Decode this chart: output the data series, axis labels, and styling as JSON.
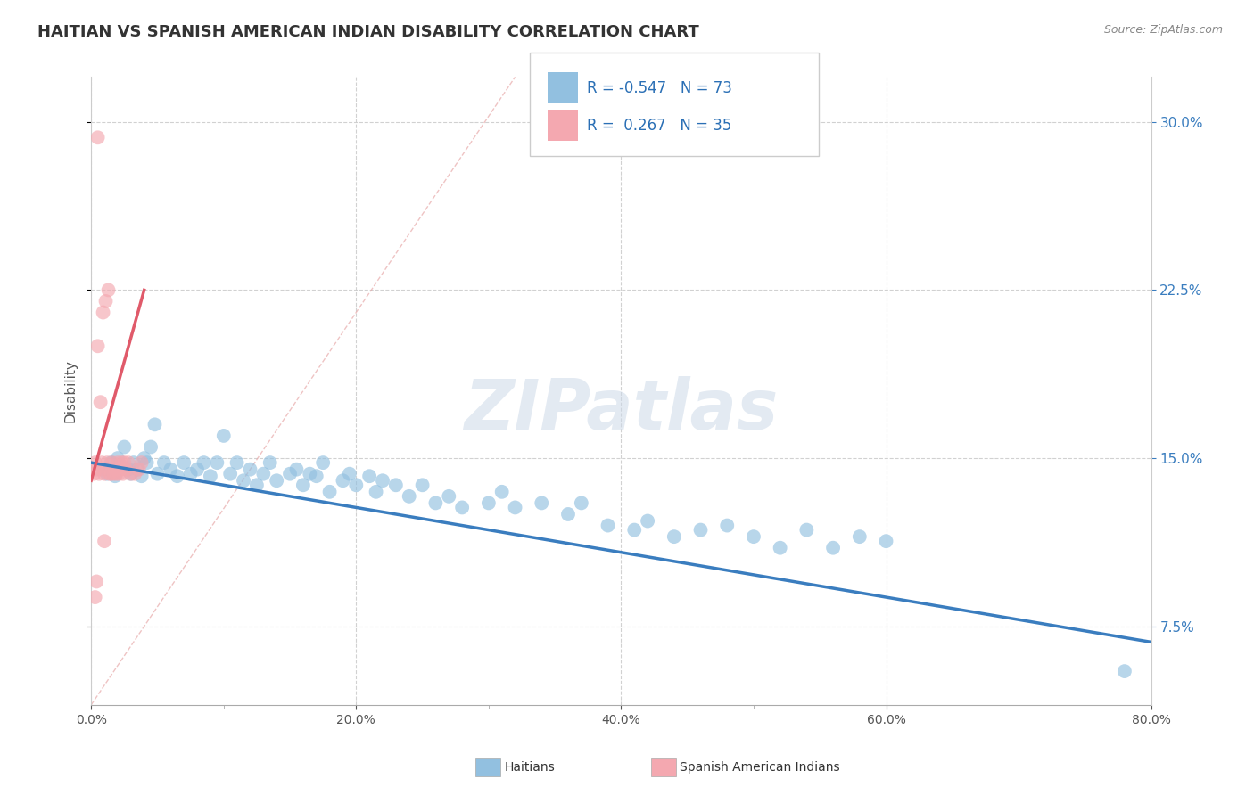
{
  "title": "HAITIAN VS SPANISH AMERICAN INDIAN DISABILITY CORRELATION CHART",
  "source_text": "Source: ZipAtlas.com",
  "ylabel_label": "Disability",
  "legend_label1": "Haitians",
  "legend_label2": "Spanish American Indians",
  "R1": "-0.547",
  "N1": "73",
  "R2": "0.267",
  "N2": "35",
  "blue_color": "#92c0e0",
  "pink_color": "#f4a8b0",
  "blue_line_color": "#3a7dbf",
  "pink_line_color": "#e05a6a",
  "diag_color": "#ddaaaa",
  "watermark_text": "ZIPatlas",
  "xmin": 0.0,
  "xmax": 0.8,
  "ymin": 0.04,
  "ymax": 0.32,
  "blue_x": [
    0.01,
    0.012,
    0.015,
    0.018,
    0.02,
    0.022,
    0.025,
    0.028,
    0.03,
    0.032,
    0.035,
    0.038,
    0.04,
    0.042,
    0.045,
    0.048,
    0.05,
    0.055,
    0.06,
    0.065,
    0.07,
    0.075,
    0.08,
    0.085,
    0.09,
    0.095,
    0.1,
    0.105,
    0.11,
    0.115,
    0.12,
    0.125,
    0.13,
    0.135,
    0.14,
    0.15,
    0.155,
    0.16,
    0.165,
    0.17,
    0.175,
    0.18,
    0.19,
    0.195,
    0.2,
    0.21,
    0.215,
    0.22,
    0.23,
    0.24,
    0.25,
    0.26,
    0.27,
    0.28,
    0.3,
    0.31,
    0.32,
    0.34,
    0.36,
    0.37,
    0.39,
    0.41,
    0.42,
    0.44,
    0.46,
    0.48,
    0.5,
    0.52,
    0.54,
    0.56,
    0.58,
    0.6,
    0.78
  ],
  "blue_y": [
    0.145,
    0.143,
    0.148,
    0.142,
    0.15,
    0.147,
    0.155,
    0.145,
    0.143,
    0.148,
    0.145,
    0.142,
    0.15,
    0.148,
    0.155,
    0.165,
    0.143,
    0.148,
    0.145,
    0.142,
    0.148,
    0.143,
    0.145,
    0.148,
    0.142,
    0.148,
    0.16,
    0.143,
    0.148,
    0.14,
    0.145,
    0.138,
    0.143,
    0.148,
    0.14,
    0.143,
    0.145,
    0.138,
    0.143,
    0.142,
    0.148,
    0.135,
    0.14,
    0.143,
    0.138,
    0.142,
    0.135,
    0.14,
    0.138,
    0.133,
    0.138,
    0.13,
    0.133,
    0.128,
    0.13,
    0.135,
    0.128,
    0.13,
    0.125,
    0.13,
    0.12,
    0.118,
    0.122,
    0.115,
    0.118,
    0.12,
    0.115,
    0.11,
    0.118,
    0.11,
    0.115,
    0.113,
    0.055
  ],
  "pink_x": [
    0.002,
    0.003,
    0.004,
    0.005,
    0.006,
    0.007,
    0.008,
    0.009,
    0.01,
    0.011,
    0.012,
    0.013,
    0.014,
    0.015,
    0.016,
    0.017,
    0.018,
    0.019,
    0.02,
    0.021,
    0.022,
    0.023,
    0.024,
    0.025,
    0.026,
    0.028,
    0.03,
    0.033,
    0.036,
    0.038,
    0.003,
    0.004,
    0.005,
    0.007,
    0.01
  ],
  "pink_y": [
    0.143,
    0.148,
    0.145,
    0.2,
    0.143,
    0.145,
    0.148,
    0.215,
    0.143,
    0.22,
    0.148,
    0.225,
    0.143,
    0.143,
    0.148,
    0.143,
    0.145,
    0.143,
    0.148,
    0.143,
    0.145,
    0.148,
    0.143,
    0.148,
    0.145,
    0.148,
    0.143,
    0.143,
    0.145,
    0.148,
    0.088,
    0.095,
    0.293,
    0.175,
    0.113
  ]
}
